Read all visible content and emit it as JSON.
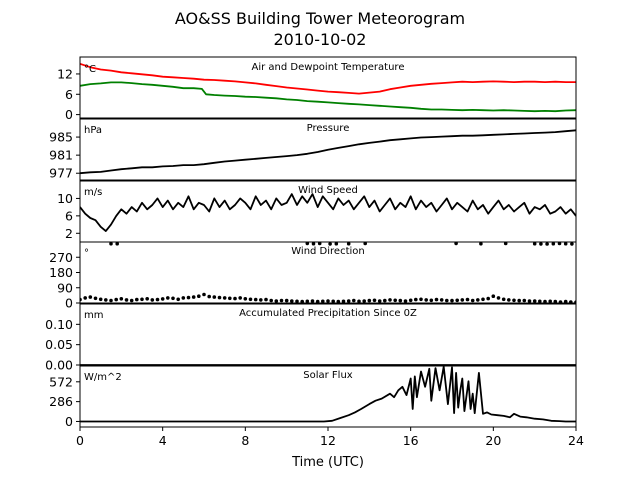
{
  "figure": {
    "title_line1": "AO&SS Building Tower Meteorogram",
    "title_line2": "2010-10-02",
    "xlabel": "Time (UTC)",
    "x_ticks": [
      "0",
      "4",
      "8",
      "12",
      "16",
      "20",
      "24"
    ]
  },
  "chart_data": [
    {
      "type": "line",
      "title": "Air and Dewpoint Temperature",
      "unit": "°C",
      "ylim": [
        -1,
        17
      ],
      "yticks": [
        0,
        6,
        12
      ],
      "xlim": [
        0,
        24
      ],
      "series": [
        {
          "color": "#ff0000",
          "x": [
            0,
            0.5,
            1,
            1.5,
            2,
            2.5,
            3,
            3.5,
            4,
            4.5,
            5,
            5.5,
            6,
            6.5,
            7,
            7.5,
            8,
            8.5,
            9,
            9.5,
            10,
            10.5,
            11,
            11.5,
            12,
            12.5,
            13,
            13.5,
            14,
            14.5,
            15,
            15.5,
            16,
            16.5,
            17,
            17.5,
            18,
            18.5,
            19,
            19.5,
            20,
            20.5,
            21,
            21.5,
            22,
            22.5,
            23,
            23.5,
            24
          ],
          "values": [
            15.0,
            14.0,
            13.3,
            13.0,
            12.5,
            12.2,
            11.9,
            11.6,
            11.2,
            11.0,
            10.8,
            10.6,
            10.3,
            10.2,
            10.0,
            9.8,
            9.5,
            9.2,
            8.8,
            8.4,
            8.0,
            7.7,
            7.4,
            7.1,
            6.8,
            6.6,
            6.4,
            6.2,
            6.5,
            6.8,
            7.5,
            8.0,
            8.5,
            8.8,
            9.1,
            9.3,
            9.5,
            9.7,
            9.6,
            9.7,
            9.8,
            9.7,
            9.6,
            9.7,
            9.7,
            9.6,
            9.7,
            9.6,
            9.6
          ]
        },
        {
          "color": "#008000",
          "x": [
            0,
            0.5,
            1,
            1.5,
            2,
            2.5,
            3,
            3.5,
            4,
            4.5,
            5,
            5.5,
            5.9,
            6.1,
            6.5,
            7,
            7.5,
            8,
            8.5,
            9,
            9.5,
            10,
            10.5,
            11,
            11.5,
            12,
            12.5,
            13,
            13.5,
            14,
            14.5,
            15,
            15.5,
            16,
            16.5,
            17,
            17.5,
            18,
            18.5,
            19,
            19.5,
            20,
            20.5,
            21,
            21.5,
            22,
            22.5,
            23,
            23.5,
            24
          ],
          "values": [
            8.5,
            9.0,
            9.2,
            9.5,
            9.5,
            9.3,
            9.0,
            8.8,
            8.5,
            8.2,
            7.8,
            7.8,
            7.6,
            6.0,
            5.8,
            5.6,
            5.5,
            5.3,
            5.2,
            5.0,
            4.8,
            4.5,
            4.3,
            4.0,
            3.8,
            3.6,
            3.4,
            3.2,
            3.0,
            2.8,
            2.6,
            2.4,
            2.2,
            2.0,
            1.7,
            1.5,
            1.5,
            1.4,
            1.3,
            1.4,
            1.3,
            1.2,
            1.3,
            1.2,
            1.1,
            1.0,
            1.1,
            1.0,
            1.2,
            1.3
          ]
        }
      ]
    },
    {
      "type": "line",
      "title": "Pressure",
      "unit": "hPa",
      "ylim": [
        975.5,
        989
      ],
      "yticks": [
        977,
        981,
        985
      ],
      "xlim": [
        0,
        24
      ],
      "series": [
        {
          "color": "#000000",
          "x": [
            0,
            0.5,
            1,
            1.5,
            2,
            2.5,
            3,
            3.5,
            4,
            4.5,
            5,
            5.5,
            6,
            6.5,
            7,
            7.5,
            8,
            8.5,
            9,
            9.5,
            10,
            10.5,
            11,
            11.5,
            12,
            12.5,
            13,
            13.5,
            14,
            14.5,
            15,
            15.5,
            16,
            16.5,
            17,
            17.5,
            18,
            18.5,
            19,
            19.5,
            20,
            20.5,
            21,
            21.5,
            22,
            22.5,
            23,
            23.5,
            24
          ],
          "values": [
            977.0,
            977.2,
            977.3,
            977.6,
            977.9,
            978.1,
            978.3,
            978.3,
            978.5,
            978.6,
            978.8,
            978.8,
            979.0,
            979.3,
            979.6,
            979.8,
            980.0,
            980.2,
            980.4,
            980.6,
            980.8,
            981.0,
            981.3,
            981.7,
            982.2,
            982.6,
            983.0,
            983.4,
            983.7,
            984.0,
            984.3,
            984.5,
            984.7,
            984.9,
            985.0,
            985.1,
            985.2,
            985.3,
            985.3,
            985.4,
            985.5,
            985.6,
            985.7,
            985.8,
            985.9,
            986.0,
            986.1,
            986.3,
            986.5
          ]
        }
      ]
    },
    {
      "type": "line",
      "title": "Wind Speed",
      "unit": "m/s",
      "ylim": [
        0,
        14
      ],
      "yticks": [
        2,
        6,
        10
      ],
      "xlim": [
        0,
        24
      ],
      "series": [
        {
          "color": "#000000",
          "x": [
            0,
            0.25,
            0.5,
            0.75,
            1,
            1.25,
            1.5,
            1.75,
            2,
            2.25,
            2.5,
            2.75,
            3,
            3.25,
            3.5,
            3.75,
            4,
            4.25,
            4.5,
            4.75,
            5,
            5.25,
            5.5,
            5.75,
            6,
            6.25,
            6.5,
            6.75,
            7,
            7.25,
            7.5,
            7.75,
            8,
            8.25,
            8.5,
            8.75,
            9,
            9.25,
            9.5,
            9.75,
            10,
            10.25,
            10.5,
            10.75,
            11,
            11.25,
            11.5,
            11.75,
            12,
            12.25,
            12.5,
            12.75,
            13,
            13.25,
            13.5,
            13.75,
            14,
            14.25,
            14.5,
            14.75,
            15,
            15.25,
            15.5,
            15.75,
            16,
            16.25,
            16.5,
            16.75,
            17,
            17.25,
            17.5,
            17.75,
            18,
            18.25,
            18.5,
            18.75,
            19,
            19.25,
            19.5,
            19.75,
            20,
            20.25,
            20.5,
            20.75,
            21,
            21.25,
            21.5,
            21.75,
            22,
            22.25,
            22.5,
            22.75,
            23,
            23.25,
            23.5,
            23.75,
            24
          ],
          "values": [
            8.0,
            6.5,
            5.5,
            5.0,
            3.5,
            2.5,
            4.0,
            6.0,
            7.5,
            6.5,
            8.0,
            7.0,
            9.0,
            7.5,
            8.5,
            10.0,
            8.0,
            9.5,
            7.5,
            9.0,
            8.0,
            10.5,
            7.5,
            9.0,
            8.5,
            7.0,
            10.0,
            8.0,
            9.5,
            7.5,
            8.5,
            10.0,
            9.0,
            7.5,
            10.5,
            8.5,
            9.5,
            7.5,
            10.0,
            8.5,
            9.0,
            11.0,
            8.5,
            10.5,
            9.0,
            11.0,
            8.0,
            10.5,
            9.0,
            7.5,
            10.0,
            8.5,
            9.5,
            7.5,
            9.0,
            10.5,
            8.0,
            9.5,
            7.0,
            8.5,
            10.0,
            7.5,
            9.0,
            8.0,
            10.5,
            7.5,
            9.5,
            8.0,
            9.0,
            7.0,
            8.5,
            10.0,
            7.5,
            9.0,
            8.0,
            7.0,
            9.5,
            7.5,
            8.5,
            6.5,
            8.0,
            9.5,
            7.5,
            8.5,
            7.0,
            8.0,
            9.0,
            6.5,
            8.0,
            7.5,
            8.5,
            6.5,
            7.0,
            8.0,
            6.5,
            7.5,
            6.0
          ]
        }
      ]
    },
    {
      "type": "scatter",
      "title": "Wind Direction",
      "unit": "°",
      "ylim": [
        0,
        360
      ],
      "yticks": [
        0,
        90,
        180,
        270
      ],
      "xlim": [
        0,
        24
      ],
      "series": [
        {
          "color": "#000000",
          "x": [
            0,
            0.25,
            0.5,
            0.75,
            1,
            1.25,
            1.5,
            1.75,
            2,
            2.25,
            2.5,
            2.75,
            3,
            3.25,
            3.5,
            3.75,
            4,
            4.25,
            4.5,
            4.75,
            5,
            5.25,
            5.5,
            5.75,
            6,
            6.25,
            6.5,
            6.75,
            7,
            7.25,
            7.5,
            7.75,
            8,
            8.25,
            8.5,
            8.75,
            9,
            9.25,
            9.5,
            9.75,
            10,
            10.25,
            10.5,
            10.75,
            11,
            11.25,
            11.5,
            11.75,
            12,
            12.25,
            12.5,
            12.75,
            13,
            13.25,
            13.5,
            13.75,
            14,
            14.25,
            14.5,
            14.75,
            15,
            15.25,
            15.5,
            15.75,
            16,
            16.25,
            16.5,
            16.75,
            17,
            17.25,
            17.5,
            17.75,
            18,
            18.25,
            18.5,
            18.75,
            19,
            19.25,
            19.5,
            19.75,
            20,
            20.25,
            20.5,
            20.75,
            21,
            21.25,
            21.5,
            21.75,
            22,
            22.25,
            22.5,
            22.75,
            23,
            23.25,
            23.5,
            23.75,
            24,
            1.5,
            1.8,
            11.0,
            11.3,
            11.6,
            12.1,
            12.4,
            13.0,
            13.8,
            18.2,
            19.4,
            20.6,
            22.0,
            22.3,
            22.6,
            22.9,
            23.2,
            23.5,
            23.8
          ],
          "values": [
            20,
            30,
            35,
            28,
            22,
            18,
            15,
            20,
            25,
            18,
            15,
            20,
            22,
            25,
            18,
            20,
            24,
            30,
            28,
            22,
            30,
            32,
            35,
            40,
            50,
            38,
            35,
            32,
            30,
            28,
            26,
            30,
            25,
            22,
            20,
            18,
            20,
            15,
            12,
            15,
            14,
            12,
            10,
            8,
            10,
            12,
            8,
            10,
            12,
            10,
            8,
            10,
            12,
            15,
            10,
            12,
            14,
            16,
            12,
            14,
            18,
            16,
            14,
            12,
            16,
            20,
            22,
            18,
            16,
            20,
            18,
            15,
            14,
            16,
            18,
            20,
            15,
            18,
            22,
            26,
            40,
            30,
            22,
            18,
            16,
            14,
            15,
            12,
            12,
            10,
            8,
            10,
            8,
            6,
            8,
            6,
            5,
            350,
            350,
            352,
            350,
            351,
            349,
            350,
            350,
            351,
            352,
            350,
            351,
            350,
            349,
            348,
            350,
            351,
            350,
            349
          ]
        }
      ]
    },
    {
      "type": "line",
      "title": "Accumulated Precipitation Since 0Z",
      "unit": "mm",
      "ylim": [
        0,
        0.15
      ],
      "yticks": [
        "0.00",
        "0.05",
        "0.10"
      ],
      "xlim": [
        0,
        24
      ],
      "series": [
        {
          "color": "#000000",
          "x": [
            0,
            24
          ],
          "values": [
            0,
            0
          ]
        }
      ]
    },
    {
      "type": "line",
      "title": "Solar Flux",
      "unit": "W/m^2",
      "ylim": [
        -80,
        800
      ],
      "yticks": [
        0,
        286,
        572
      ],
      "xlim": [
        0,
        24
      ],
      "series": [
        {
          "color": "#000000",
          "x": [
            0,
            11.8,
            12.2,
            12.6,
            13.0,
            13.3,
            13.6,
            14.0,
            14.3,
            14.6,
            15.0,
            15.2,
            15.4,
            15.6,
            15.8,
            16.0,
            16.1,
            16.2,
            16.3,
            16.5,
            16.7,
            16.9,
            17.0,
            17.2,
            17.4,
            17.6,
            17.8,
            18.0,
            18.1,
            18.2,
            18.3,
            18.4,
            18.5,
            18.6,
            18.8,
            18.9,
            19.0,
            19.1,
            19.3,
            19.5,
            19.7,
            19.9,
            20.2,
            20.5,
            20.8,
            21.0,
            21.3,
            21.6,
            22.0,
            22.4,
            22.8,
            23.2,
            23.5,
            24.0
          ],
          "values": [
            0,
            0,
            10,
            50,
            90,
            130,
            180,
            250,
            300,
            330,
            400,
            350,
            450,
            500,
            380,
            620,
            180,
            650,
            350,
            720,
            500,
            760,
            300,
            770,
            450,
            790,
            250,
            780,
            120,
            700,
            200,
            450,
            620,
            150,
            580,
            180,
            400,
            120,
            700,
            110,
            130,
            100,
            90,
            80,
            60,
            110,
            70,
            60,
            40,
            30,
            10,
            5,
            0,
            0
          ]
        }
      ]
    }
  ]
}
